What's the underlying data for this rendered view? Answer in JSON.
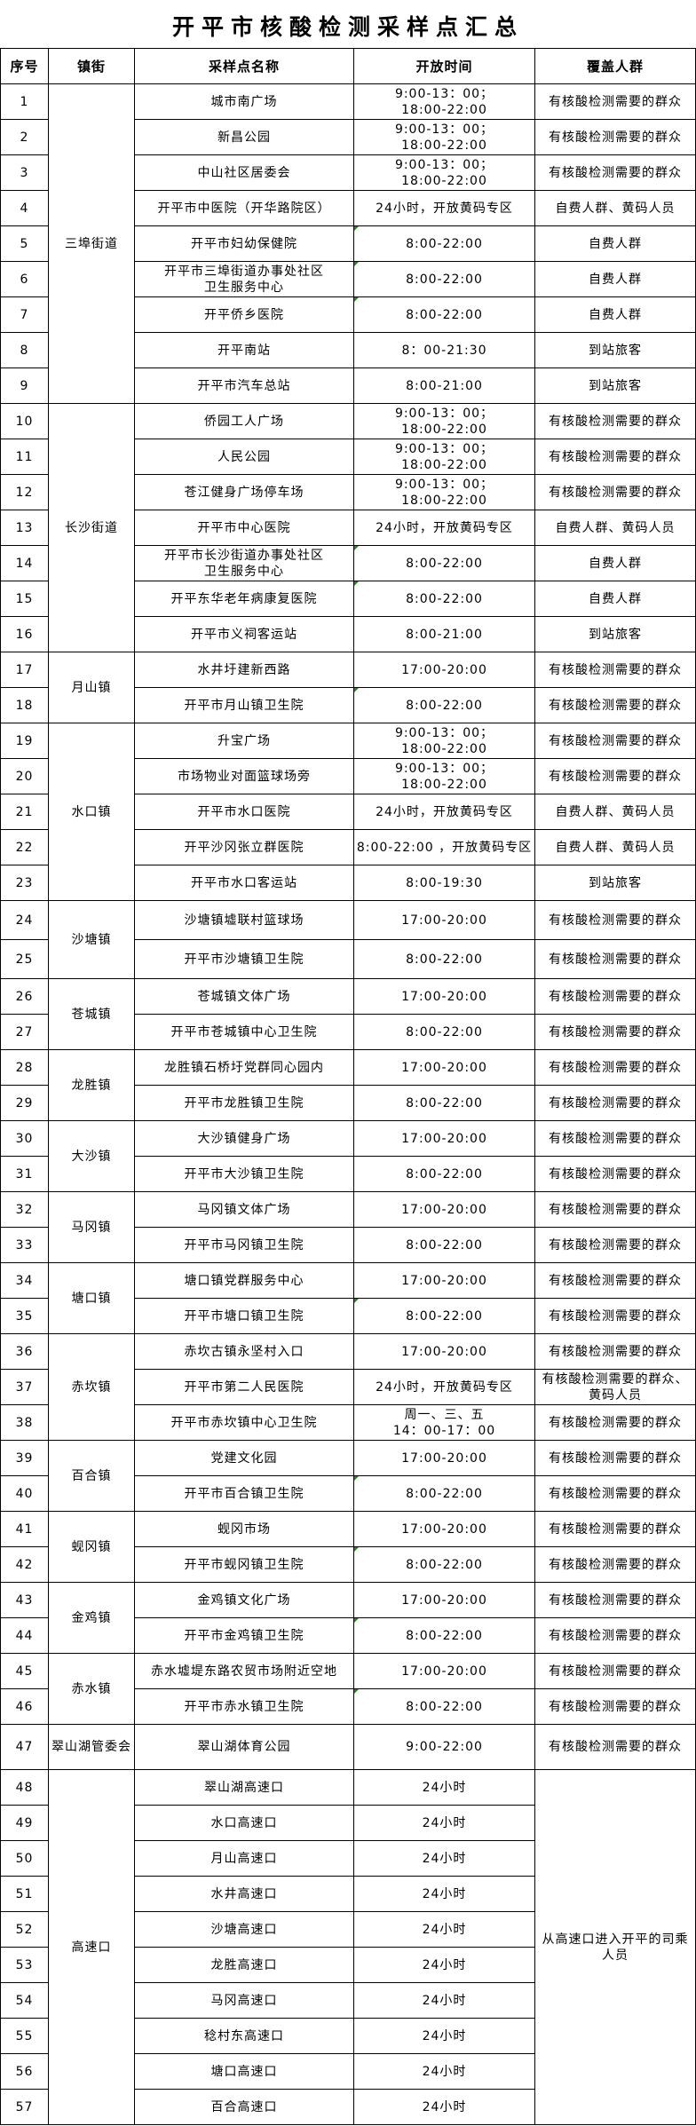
{
  "title": "开平市核酸检测采样点汇总",
  "columns": [
    "序号",
    "镇街",
    "采样点名称",
    "开放时间",
    "覆盖人群"
  ],
  "colors": {
    "border": "#000000",
    "comment_marker": "#1a8a1a"
  },
  "groups": [
    {
      "district": "三埠街道",
      "sites": [
        {
          "no": "1",
          "name": "城市南广场",
          "time": "9:00-13：00；\n 18:00-22:00",
          "audience": "有核酸检测需要的群众"
        },
        {
          "no": "2",
          "name": "新昌公园",
          "time": "9:00-13：00；\n 18:00-22:00",
          "audience": "有核酸检测需要的群众"
        },
        {
          "no": "3",
          "name": "中山社区居委会",
          "time": "9:00-13：00；\n 18:00-22:00",
          "audience": "有核酸检测需要的群众"
        },
        {
          "no": "4",
          "name": "开平市中医院（开华路院区）",
          "time": "24小时，开放黄码专区",
          "audience": "自费人群、黄码人员"
        },
        {
          "no": "5",
          "name": "开平市妇幼保健院",
          "time": "8:00-22:00",
          "audience": "自费人群",
          "marker": true
        },
        {
          "no": "6",
          "name": "开平市三埠街道办事处社区\n卫生服务中心",
          "time": "8:00-22:00",
          "audience": "自费人群",
          "marker": true
        },
        {
          "no": "7",
          "name": "开平侨乡医院",
          "time": "8:00-22:00",
          "audience": "自费人群",
          "marker": true
        },
        {
          "no": "8",
          "name": "开平南站",
          "time": "8：00-21:30",
          "audience": "到站旅客"
        },
        {
          "no": "9",
          "name": "开平市汽车总站",
          "time": "8:00-21:00",
          "audience": "到站旅客"
        }
      ]
    },
    {
      "district": "长沙街道",
      "sites": [
        {
          "no": "10",
          "name": "侨园工人广场",
          "time": "9:00-13：00；\n 18:00-22:00",
          "audience": "有核酸检测需要的群众"
        },
        {
          "no": "11",
          "name": "人民公园",
          "time": "9:00-13：00；\n 18:00-22:00",
          "audience": "有核酸检测需要的群众"
        },
        {
          "no": "12",
          "name": "苍江健身广场停车场",
          "time": "9:00-13：00；\n 18:00-22:00",
          "audience": "有核酸检测需要的群众"
        },
        {
          "no": "13",
          "name": "开平市中心医院",
          "time": "24小时，开放黄码专区",
          "audience": "自费人群、黄码人员"
        },
        {
          "no": "14",
          "name": "开平市长沙街道办事处社区\n卫生服务中心",
          "time": "8:00-22:00",
          "audience": "自费人群",
          "marker": true
        },
        {
          "no": "15",
          "name": "开平东华老年病康复医院",
          "time": "8:00-22:00",
          "audience": "自费人群",
          "marker": true
        },
        {
          "no": "16",
          "name": "开平市义祠客运站",
          "time": "8:00-21:00",
          "audience": "到站旅客"
        }
      ]
    },
    {
      "district": "月山镇",
      "sites": [
        {
          "no": "17",
          "name": "水井圩建新西路",
          "time": "17:00-20:00",
          "audience": "有核酸检测需要的群众"
        },
        {
          "no": "18",
          "name": "开平市月山镇卫生院",
          "time": "8:00-22:00",
          "audience": "有核酸检测需要的群众",
          "marker": true
        }
      ]
    },
    {
      "district": "水口镇",
      "sites": [
        {
          "no": "19",
          "name": "升宝广场",
          "time": "9:00-13：00；\n 18:00-22:00",
          "audience": "有核酸检测需要的群众"
        },
        {
          "no": "20",
          "name": "市场物业对面篮球场旁",
          "time": "9:00-13：00；\n 18:00-22:00",
          "audience": "有核酸检测需要的群众"
        },
        {
          "no": "21",
          "name": "开平市水口医院",
          "time": "24小时，开放黄码专区",
          "audience": "自费人群、黄码人员"
        },
        {
          "no": "22",
          "name": "开平沙冈张立群医院",
          "time": "8:00-22:00 ，开放黄码专区",
          "audience": "自费人群、黄码人员"
        },
        {
          "no": "23",
          "name": "开平市水口客运站",
          "time": "8:00-19:30",
          "audience": "到站旅客"
        }
      ]
    },
    {
      "district": "沙塘镇",
      "tall": true,
      "sites": [
        {
          "no": "24",
          "name": "沙塘镇墟联村篮球场",
          "time": "17:00-20:00",
          "audience": "有核酸检测需要的群众"
        },
        {
          "no": "25",
          "name": "开平市沙塘镇卫生院",
          "time": "8:00-22:00",
          "audience": "有核酸检测需要的群众"
        }
      ]
    },
    {
      "district": "苍城镇",
      "sites": [
        {
          "no": "26",
          "name": "苍城镇文体广场",
          "time": "17:00-20:00",
          "audience": "有核酸检测需要的群众"
        },
        {
          "no": "27",
          "name": "开平市苍城镇中心卫生院",
          "time": "8:00-22:00",
          "audience": "有核酸检测需要的群众"
        }
      ]
    },
    {
      "district": "龙胜镇",
      "sites": [
        {
          "no": "28",
          "name": "龙胜镇石桥圩党群同心园内",
          "time": "17:00-20:00",
          "audience": "有核酸检测需要的群众"
        },
        {
          "no": "29",
          "name": "开平市龙胜镇卫生院",
          "time": "8:00-22:00",
          "audience": "有核酸检测需要的群众"
        }
      ]
    },
    {
      "district": "大沙镇",
      "sites": [
        {
          "no": "30",
          "name": "大沙镇健身广场",
          "time": "17:00-20:00",
          "audience": "有核酸检测需要的群众"
        },
        {
          "no": "31",
          "name": "开平市大沙镇卫生院",
          "time": "8:00-22:00",
          "audience": "有核酸检测需要的群众"
        }
      ]
    },
    {
      "district": "马冈镇",
      "sites": [
        {
          "no": "32",
          "name": "马冈镇文体广场",
          "time": "17:00-20:00",
          "audience": "有核酸检测需要的群众"
        },
        {
          "no": "33",
          "name": "开平市马冈镇卫生院",
          "time": "8:00-22:00",
          "audience": "有核酸检测需要的群众"
        }
      ]
    },
    {
      "district": "塘口镇",
      "sites": [
        {
          "no": "34",
          "name": "塘口镇党群服务中心",
          "time": "17:00-20:00",
          "audience": "有核酸检测需要的群众"
        },
        {
          "no": "35",
          "name": "开平市塘口镇卫生院",
          "time": "8:00-22:00",
          "audience": "有核酸检测需要的群众",
          "marker": true
        }
      ]
    },
    {
      "district": "赤坎镇",
      "sites": [
        {
          "no": "36",
          "name": "赤坎古镇永坚村入口",
          "time": "17:00-20:00",
          "audience": "有核酸检测需要的群众"
        },
        {
          "no": "37",
          "name": "开平市第二人民医院",
          "time": "24小时，开放黄码专区",
          "audience": "有核酸检测需要的群众、\n黄码人员"
        },
        {
          "no": "38",
          "name": "开平市赤坎镇中心卫生院",
          "time": "周一、三、五\n14：00-17：00",
          "audience": "有核酸检测需要的群众"
        }
      ]
    },
    {
      "district": "百合镇",
      "sites": [
        {
          "no": "39",
          "name": "党建文化园",
          "time": "17:00-20:00",
          "audience": "有核酸检测需要的群众"
        },
        {
          "no": "40",
          "name": "开平市百合镇卫生院",
          "time": "8:00-22:00",
          "audience": "有核酸检测需要的群众",
          "marker": true
        }
      ]
    },
    {
      "district": "蚬冈镇",
      "sites": [
        {
          "no": "41",
          "name": "蚬冈市场",
          "time": "17:00-20:00",
          "audience": "有核酸检测需要的群众"
        },
        {
          "no": "42",
          "name": "开平市蚬冈镇卫生院",
          "time": "8:00-22:00",
          "audience": "有核酸检测需要的群众",
          "marker": true
        }
      ]
    },
    {
      "district": "金鸡镇",
      "sites": [
        {
          "no": "43",
          "name": "金鸡镇文化广场",
          "time": "17:00-20:00",
          "audience": "有核酸检测需要的群众"
        },
        {
          "no": "44",
          "name": "开平市金鸡镇卫生院",
          "time": "8:00-22:00",
          "audience": "有核酸检测需要的群众",
          "marker": true
        }
      ]
    },
    {
      "district": "赤水镇",
      "sites": [
        {
          "no": "45",
          "name": "赤水墟堤东路农贸市场附近空地",
          "time": "17:00-20:00",
          "audience": "有核酸检测需要的群众"
        },
        {
          "no": "46",
          "name": "开平市赤水镇卫生院",
          "time": "8:00-22:00",
          "audience": "有核酸检测需要的群众",
          "marker": true
        }
      ]
    },
    {
      "district": "翠山湖管委会",
      "taller": true,
      "sites": [
        {
          "no": "47",
          "name": "翠山湖体育公园",
          "time": "9:00-22:00",
          "audience": "有核酸检测需要的群众"
        }
      ]
    },
    {
      "district": "高速口",
      "shared_audience": "从高速口进入开平的司乘\n人员",
      "sites": [
        {
          "no": "48",
          "name": "翠山湖高速口",
          "time": "24小时"
        },
        {
          "no": "49",
          "name": "水口高速口",
          "time": "24小时"
        },
        {
          "no": "50",
          "name": "月山高速口",
          "time": "24小时"
        },
        {
          "no": "51",
          "name": "水井高速口",
          "time": "24小时"
        },
        {
          "no": "52",
          "name": "沙塘高速口",
          "time": "24小时"
        },
        {
          "no": "53",
          "name": "龙胜高速口",
          "time": "24小时"
        },
        {
          "no": "54",
          "name": "马冈高速口",
          "time": "24小时"
        },
        {
          "no": "55",
          "name": "稔村东高速口",
          "time": "24小时"
        },
        {
          "no": "56",
          "name": "塘口高速口",
          "time": "24小时"
        },
        {
          "no": "57",
          "name": "百合高速口",
          "time": "24小时"
        }
      ]
    }
  ]
}
